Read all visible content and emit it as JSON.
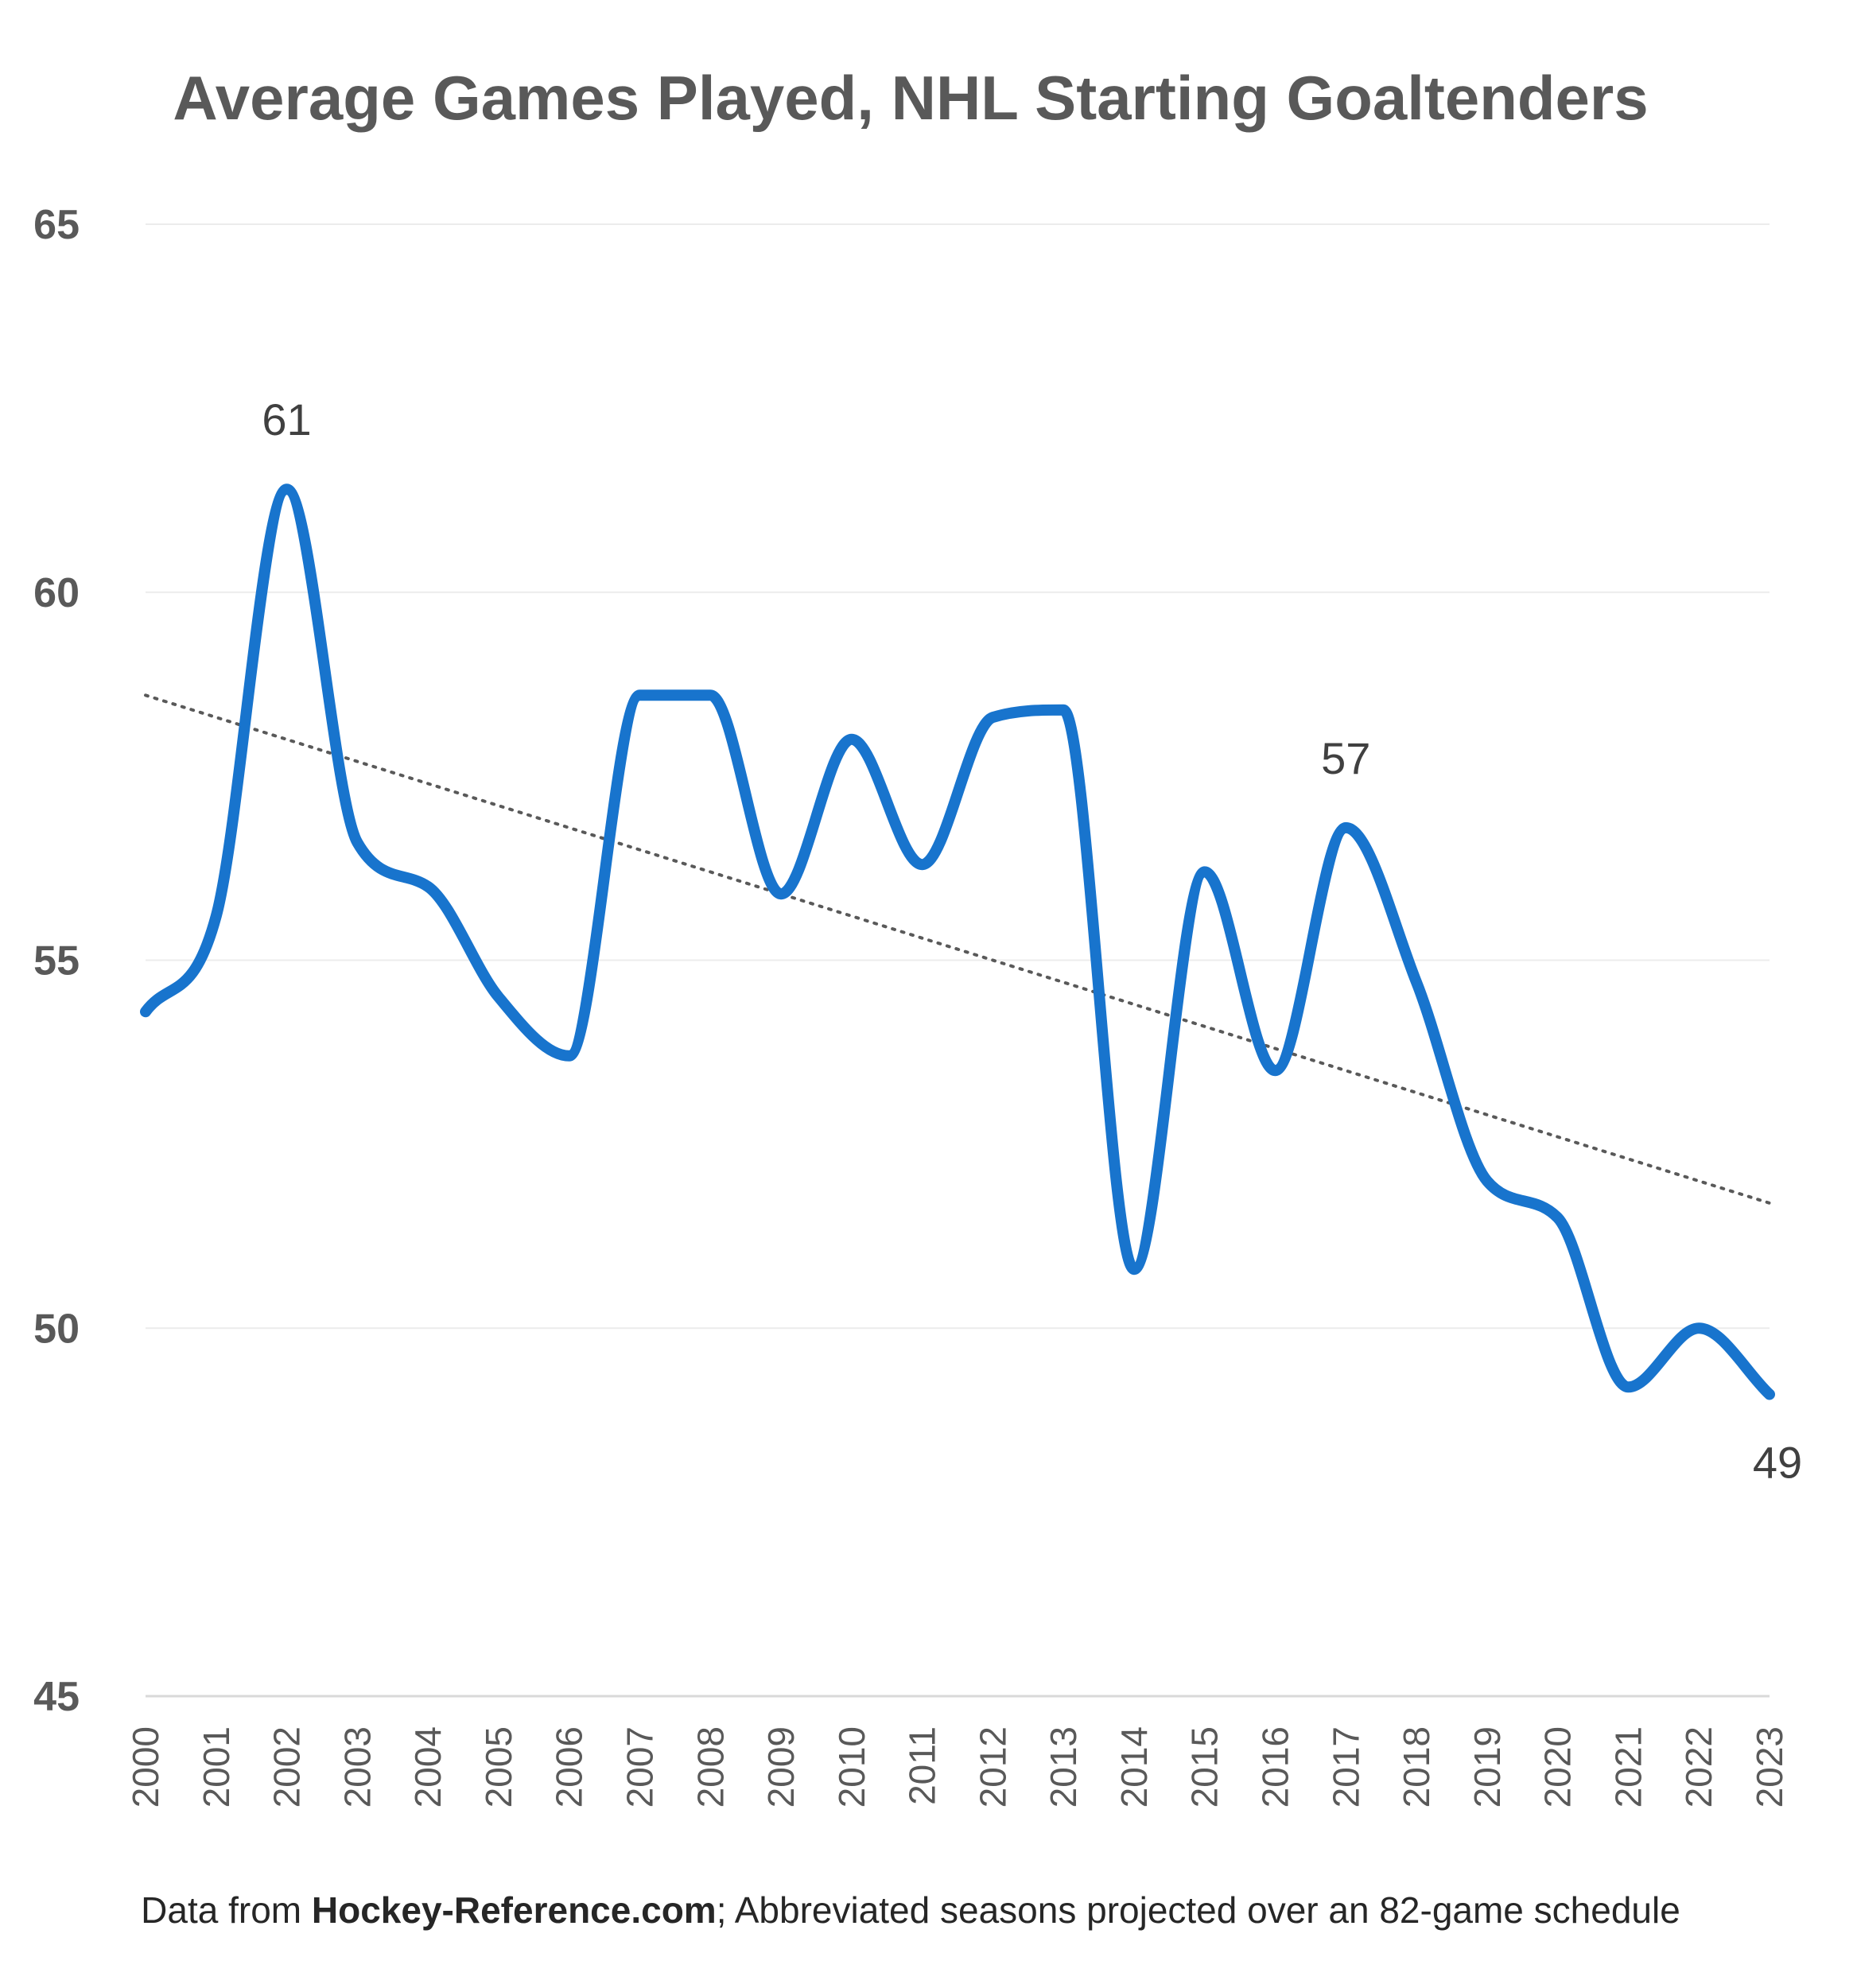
{
  "chart_data": {
    "type": "line",
    "title": "Average Games Played, NHL Starting Goaltenders",
    "xlabel": "",
    "ylabel": "",
    "ylim": [
      45,
      65
    ],
    "yticks": [
      "45",
      "50",
      "55",
      "60",
      "65"
    ],
    "x": [
      "2000",
      "2001",
      "2002",
      "2003",
      "2004",
      "2005",
      "2006",
      "2007",
      "2008",
      "2009",
      "2010",
      "2011",
      "2012",
      "2013",
      "2014",
      "2015",
      "2016",
      "2017",
      "2018",
      "2019",
      "2020",
      "2021",
      "2022",
      "2023"
    ],
    "series": [
      {
        "color": "#1874CD",
        "values": [
          54.3,
          55.6,
          61.4,
          56.6,
          56.0,
          54.5,
          53.7,
          58.6,
          58.6,
          55.9,
          58.0,
          56.3,
          58.3,
          58.4,
          50.8,
          56.2,
          53.5,
          56.8,
          54.7,
          52.0,
          51.5,
          49.2,
          50.0,
          49.1
        ]
      }
    ],
    "trendline": {
      "style": "dotted",
      "color": "#595959",
      "start": 58.6,
      "end": 51.7
    },
    "annotations": [
      {
        "x": "2002",
        "text": "61"
      },
      {
        "x": "2017",
        "text": "57"
      },
      {
        "x": "2023",
        "text": "49"
      }
    ],
    "grid": true,
    "legend": "none"
  },
  "footnote": {
    "prefix": "Data from ",
    "source": "Hockey-Reference.com",
    "suffix": "; Abbreviated seasons projected over an 82-game schedule"
  }
}
